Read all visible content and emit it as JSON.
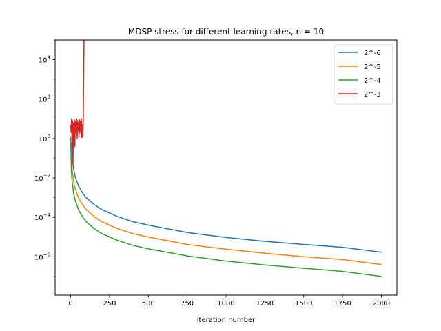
{
  "chart_data": {
    "type": "line",
    "title": "MDSP stress for different learning rates, n = 10",
    "xlabel": "iteration number",
    "ylabel": "",
    "xlim": [
      -100,
      2100
    ],
    "ylim_log10": [
      -7.95,
      5.0
    ],
    "yscale": "log",
    "grid": false,
    "legend_placement": "top-right",
    "x_ticks": [
      0,
      250,
      500,
      750,
      1000,
      1250,
      1500,
      1750,
      2000
    ],
    "x_tick_labels": [
      "0",
      "250",
      "500",
      "750",
      "1000",
      "1250",
      "1500",
      "1750",
      "2000"
    ],
    "y_ticks_log10": [
      -6,
      -4,
      -2,
      0,
      2,
      4
    ],
    "y_tick_labels": [
      {
        "base": "10",
        "exp": "−6"
      },
      {
        "base": "10",
        "exp": "−4"
      },
      {
        "base": "10",
        "exp": "−2"
      },
      {
        "base": "10",
        "exp": "0"
      },
      {
        "base": "10",
        "exp": "2"
      },
      {
        "base": "10",
        "exp": "4"
      }
    ],
    "series": [
      {
        "name": "2^-6",
        "color": "#1f77b4",
        "x": [
          0,
          5,
          10,
          20,
          30,
          50,
          75,
          100,
          150,
          200,
          300,
          400,
          500,
          750,
          1000,
          1250,
          1500,
          1750,
          2000
        ],
        "y": [
          1.0,
          0.3,
          0.1,
          0.025,
          0.011,
          0.004,
          0.0018,
          0.001,
          0.00045,
          0.00025,
          0.00011,
          6e-05,
          4e-05,
          1.7e-05,
          9.5e-06,
          6e-06,
          4.2e-06,
          3e-06,
          1.7e-06
        ]
      },
      {
        "name": "2^-5",
        "color": "#ff7f0e",
        "x": [
          0,
          5,
          10,
          20,
          30,
          50,
          75,
          100,
          150,
          200,
          300,
          400,
          500,
          750,
          1000,
          1250,
          1500,
          1750,
          2000
        ],
        "y": [
          1.0,
          0.08,
          0.025,
          0.006,
          0.0027,
          0.001,
          0.00045,
          0.00025,
          0.00011,
          6e-05,
          2.7e-05,
          1.5e-05,
          1e-05,
          4.2e-06,
          2.4e-06,
          1.5e-06,
          1e-06,
          7.2e-07,
          4e-07
        ]
      },
      {
        "name": "2^-4",
        "color": "#2ca02c",
        "x": [
          0,
          5,
          10,
          20,
          30,
          50,
          75,
          100,
          150,
          200,
          300,
          400,
          500,
          750,
          1000,
          1250,
          1500,
          1750,
          2000
        ],
        "y": [
          1.3,
          0.02,
          0.006,
          0.0015,
          0.0007,
          0.00025,
          0.00011,
          6e-05,
          2.7e-05,
          1.5e-05,
          6.8e-06,
          3.8e-06,
          2.5e-06,
          1.1e-06,
          6e-07,
          3.8e-07,
          2.6e-07,
          1.8e-07,
          1e-07
        ]
      },
      {
        "name": "2^-3",
        "color": "#d62728",
        "x": [
          0,
          3,
          6,
          9,
          12,
          15,
          18,
          21,
          24,
          27,
          30,
          33,
          36,
          39,
          42,
          45,
          48,
          51,
          54,
          57,
          60,
          63,
          66,
          69,
          72,
          75,
          78,
          81,
          84,
          86,
          88
        ],
        "y": [
          5,
          2,
          10,
          0.8,
          8,
          0.05,
          6,
          1.5,
          9,
          0.4,
          7,
          2,
          3,
          10,
          1,
          8,
          2.5,
          6,
          1.2,
          9,
          2,
          7,
          3,
          10,
          1.1,
          5,
          1.3,
          8,
          2000,
          100000,
          1000000
        ]
      }
    ]
  }
}
